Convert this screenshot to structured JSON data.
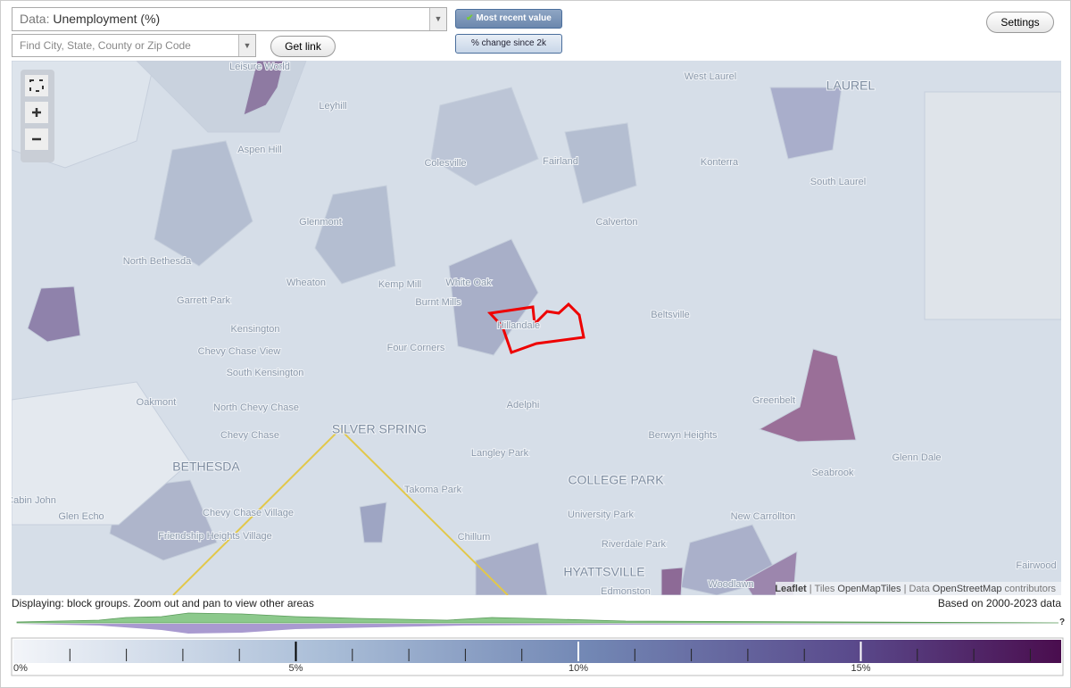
{
  "controls": {
    "data_select": {
      "prefix": "Data:",
      "value": "Unemployment (%)"
    },
    "search_placeholder": "Find City, State, County or Zip Code",
    "get_link": "Get link",
    "mode_buttons": [
      "Most recent value",
      "% change since 2k"
    ],
    "settings": "Settings"
  },
  "map": {
    "labels": [
      "Leisure World",
      "Leyhill",
      "Aspen Hill",
      "Colesville",
      "Fairland",
      "West Laurel",
      "LAUREL",
      "Konterra",
      "South Laurel",
      "Glenmont",
      "Calverton",
      "North Bethesda",
      "Wheaton",
      "Kemp Mill",
      "White Oak",
      "Burnt Mills",
      "Hillandale",
      "Beltsville",
      "Garrett Park",
      "Kensington",
      "Chevy Chase View",
      "South Kensington",
      "Four Corners",
      "Greenbelt",
      "Oakmont",
      "North Chevy Chase",
      "SILVER SPRING",
      "Adelphi",
      "Chevy Chase",
      "Berwyn Heights",
      "BETHESDA",
      "Langley Park",
      "Seabrook",
      "Glenn Dale",
      "Takoma Park",
      "COLLEGE PARK",
      "Cabin John",
      "Glen Echo",
      "Chevy Chase Village",
      "Friendship Heights Village",
      "University Park",
      "New Carrollton",
      "Chillum",
      "Riverdale Park",
      "HYATTSVILLE",
      "Fairwood",
      "Edmonston",
      "Woodlawn"
    ],
    "attribution": {
      "leaflet": "Leaflet",
      "tiles_prefix": "| Tiles",
      "tiles": "OpenMapTiles",
      "data_prefix": "| Data",
      "data": "OpenStreetMap",
      "suffix": "contributors"
    }
  },
  "footer": {
    "displaying": "Displaying: block groups. Zoom out and pan to view other areas",
    "based_on": "Based on 2000-2023 data",
    "help": "?"
  },
  "legend": {
    "tick_labels": [
      "0%",
      "5%",
      "10%",
      "15%"
    ]
  }
}
